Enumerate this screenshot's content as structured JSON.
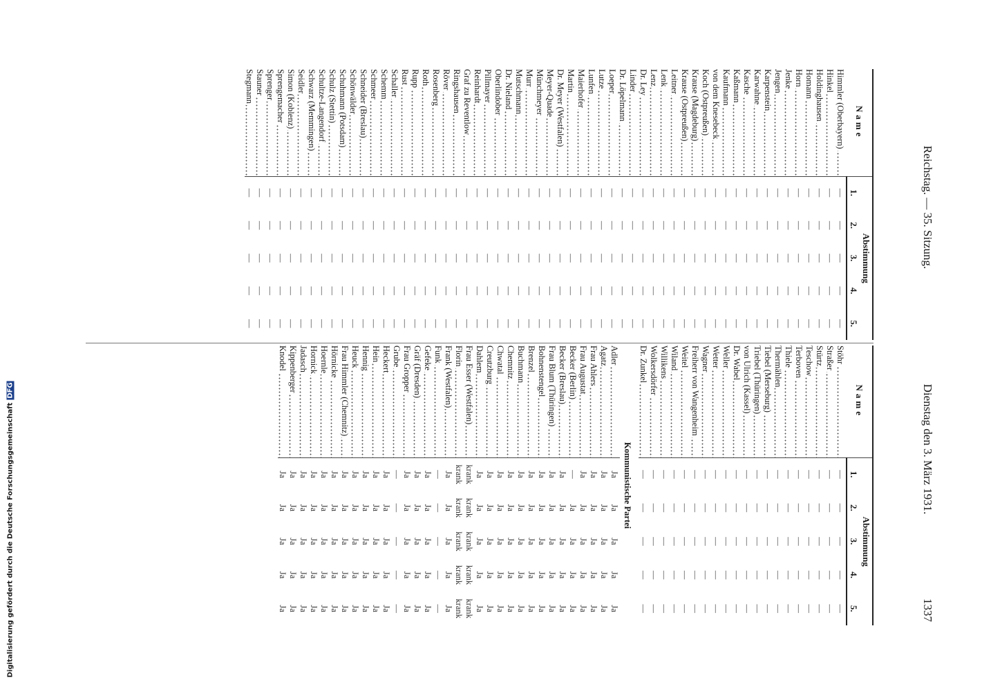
{
  "header": {
    "left": "Reichstag. — 35. Sitzung.",
    "right": "Dienstag den 3. März 1931.",
    "page": "1337"
  },
  "columns": {
    "name": "Name",
    "vote": "Abstimmung",
    "numbers": [
      "1.",
      "2.",
      "3.",
      "4.",
      "5."
    ]
  },
  "tables": [
    {
      "rows": [
        {
          "name": "Himmler (Oberbayern)",
          "votes": [
            "—",
            "—",
            "—",
            "—",
            "—"
          ]
        },
        {
          "name": "Hinkel",
          "votes": [
            "—",
            "—",
            "—",
            "—",
            "—"
          ]
        },
        {
          "name": "Holdinghausen",
          "votes": [
            "—",
            "—",
            "—",
            "—",
            "—"
          ]
        },
        {
          "name": "Homann",
          "votes": [
            "—",
            "—",
            "—",
            "—",
            "—"
          ]
        },
        {
          "name": "Horn",
          "votes": [
            "—",
            "—",
            "—",
            "—",
            "—"
          ]
        },
        {
          "name": "Jenke",
          "votes": [
            "—",
            "—",
            "—",
            "—",
            "—"
          ]
        },
        {
          "name": "Jengen",
          "votes": [
            "—",
            "—",
            "—",
            "—",
            "—"
          ]
        },
        {
          "name": "Karpenstein",
          "votes": [
            "—",
            "—",
            "—",
            "—",
            "—"
          ]
        },
        {
          "name": "Karwahne",
          "votes": [
            "—",
            "—",
            "—",
            "—",
            "—"
          ]
        },
        {
          "name": "Kasche",
          "votes": [
            "—",
            "—",
            "—",
            "—",
            "—"
          ]
        },
        {
          "name": "Kaßmann",
          "votes": [
            "—",
            "—",
            "—",
            "—",
            "—"
          ]
        },
        {
          "name": "Kaufmann",
          "votes": [
            "—",
            "—",
            "—",
            "—",
            "—"
          ]
        },
        {
          "name": "von dem Knesebeck",
          "votes": [
            "—",
            "—",
            "—",
            "—",
            "—"
          ]
        },
        {
          "name": "Koch (Ostpreußen)",
          "votes": [
            "—",
            "—",
            "—",
            "—",
            "—"
          ]
        },
        {
          "name": "Krause (Magdeburg)",
          "votes": [
            "—",
            "—",
            "—",
            "—",
            "—"
          ]
        },
        {
          "name": "Krause (Ostpreußen)",
          "votes": [
            "—",
            "—",
            "—",
            "—",
            "—"
          ]
        },
        {
          "name": "Leitner",
          "votes": [
            "—",
            "—",
            "—",
            "—",
            "—"
          ]
        },
        {
          "name": "Lenk",
          "votes": [
            "—",
            "—",
            "—",
            "—",
            "—"
          ]
        },
        {
          "name": "Lenz",
          "votes": [
            "—",
            "—",
            "—",
            "—",
            "—"
          ]
        },
        {
          "name": "Dr. Ley",
          "votes": [
            "—",
            "—",
            "—",
            "—",
            "—"
          ]
        },
        {
          "name": "Linder",
          "votes": [
            "—",
            "—",
            "—",
            "—",
            "—"
          ]
        },
        {
          "name": "Dr. Löpelmann",
          "votes": [
            "—",
            "—",
            "—",
            "—",
            "—"
          ]
        },
        {
          "name": "Loeper",
          "votes": [
            "—",
            "—",
            "—",
            "—",
            "—"
          ]
        },
        {
          "name": "Lutze",
          "votes": [
            "—",
            "—",
            "—",
            "—",
            "—"
          ]
        },
        {
          "name": "Lunfen",
          "votes": [
            "—",
            "—",
            "—",
            "—",
            "—"
          ]
        },
        {
          "name": "Maierhofer",
          "votes": [
            "—",
            "—",
            "—",
            "—",
            "—"
          ]
        },
        {
          "name": "Martin",
          "votes": [
            "—",
            "—",
            "—",
            "—",
            "—"
          ]
        },
        {
          "name": "Dr. Meyer (Westfalen)",
          "votes": [
            "—",
            "—",
            "—",
            "—",
            "—"
          ]
        },
        {
          "name": "Meyer-Quade",
          "votes": [
            "—",
            "—",
            "—",
            "—",
            "—"
          ]
        },
        {
          "name": "Münchmeyer",
          "votes": [
            "—",
            "—",
            "—",
            "—",
            "—"
          ]
        },
        {
          "name": "Murr",
          "votes": [
            "—",
            "—",
            "—",
            "—",
            "—"
          ]
        },
        {
          "name": "Mutschmann",
          "votes": [
            "—",
            "—",
            "—",
            "—",
            "—"
          ]
        },
        {
          "name": "Dr. Nieland",
          "votes": [
            "—",
            "—",
            "—",
            "—",
            "—"
          ]
        },
        {
          "name": "Oberlindober",
          "votes": [
            "—",
            "—",
            "—",
            "—",
            "—"
          ]
        },
        {
          "name": "Pillmayer",
          "votes": [
            "—",
            "—",
            "—",
            "—",
            "—"
          ]
        },
        {
          "name": "Reinhardt",
          "votes": [
            "—",
            "—",
            "—",
            "—",
            "—"
          ]
        },
        {
          "name": "Graf zu Reventlow",
          "votes": [
            "—",
            "—",
            "—",
            "—",
            "—"
          ]
        },
        {
          "name": "Ringshausen",
          "votes": [
            "—",
            "—",
            "—",
            "—",
            "—"
          ]
        },
        {
          "name": "Röver",
          "votes": [
            "—",
            "—",
            "—",
            "—",
            "—"
          ]
        },
        {
          "name": "Rosenberg",
          "votes": [
            "—",
            "—",
            "—",
            "—",
            "—"
          ]
        },
        {
          "name": "Roth",
          "votes": [
            "—",
            "—",
            "—",
            "—",
            "—"
          ]
        },
        {
          "name": "Rupp",
          "votes": [
            "—",
            "—",
            "—",
            "—",
            "—"
          ]
        },
        {
          "name": "Rust",
          "votes": [
            "—",
            "—",
            "—",
            "—",
            "—"
          ]
        },
        {
          "name": "Schaller",
          "votes": [
            "—",
            "—",
            "—",
            "—",
            "—"
          ]
        },
        {
          "name": "Schemm",
          "votes": [
            "—",
            "—",
            "—",
            "—",
            "—"
          ]
        },
        {
          "name": "Schmeer",
          "votes": [
            "—",
            "—",
            "—",
            "—",
            "—"
          ]
        },
        {
          "name": "Schneider (Breslau)",
          "votes": [
            "—",
            "—",
            "—",
            "—",
            "—"
          ]
        },
        {
          "name": "Schönwälder",
          "votes": [
            "—",
            "—",
            "—",
            "—",
            "—"
          ]
        },
        {
          "name": "Schuhmann (Potsdam)",
          "votes": [
            "—",
            "—",
            "—",
            "—",
            "—"
          ]
        },
        {
          "name": "Schulz (Stettin)",
          "votes": [
            "—",
            "—",
            "—",
            "—",
            "—"
          ]
        },
        {
          "name": "Schultze-Langendorf",
          "votes": [
            "—",
            "—",
            "—",
            "—",
            "—"
          ]
        },
        {
          "name": "Schwarz (Memmingen)",
          "votes": [
            "—",
            "—",
            "—",
            "—",
            "—"
          ]
        },
        {
          "name": "Seidler",
          "votes": [
            "—",
            "—",
            "—",
            "—",
            "—"
          ]
        },
        {
          "name": "Simon (Koblenz)",
          "votes": [
            "—",
            "—",
            "—",
            "—",
            "—"
          ]
        },
        {
          "name": "Sprengemacher",
          "votes": [
            "—",
            "—",
            "—",
            "—",
            "—"
          ]
        },
        {
          "name": "Sprenger",
          "votes": [
            "—",
            "—",
            "—",
            "—",
            "—"
          ]
        },
        {
          "name": "Stauner",
          "votes": [
            "—",
            "—",
            "—",
            "—",
            "—"
          ]
        },
        {
          "name": "Stegmann",
          "votes": [
            "—",
            "—",
            "—",
            "—",
            "—"
          ]
        }
      ]
    },
    {
      "rows": [
        {
          "name": "Stöhr",
          "votes": [
            "—",
            "—",
            "—",
            "—",
            "—"
          ]
        },
        {
          "name": "Straßer",
          "votes": [
            "—",
            "—",
            "—",
            "—",
            "—"
          ]
        },
        {
          "name": "Stürtz",
          "votes": [
            "—",
            "—",
            "—",
            "—",
            "—"
          ]
        },
        {
          "name": "Teschow",
          "votes": [
            "—",
            "—",
            "—",
            "—",
            "—"
          ]
        },
        {
          "name": "Terboven",
          "votes": [
            "—",
            "—",
            "—",
            "—",
            "—"
          ]
        },
        {
          "name": "Thiele",
          "votes": [
            "—",
            "—",
            "—",
            "—",
            "—"
          ]
        },
        {
          "name": "Thermählen",
          "votes": [
            "—",
            "—",
            "—",
            "—",
            "—"
          ]
        },
        {
          "name": "Tiebel (Merseburg)",
          "votes": [
            "—",
            "—",
            "—",
            "—",
            "—"
          ]
        },
        {
          "name": "Triebel (Thüringen)",
          "votes": [
            "—",
            "—",
            "—",
            "—",
            "—"
          ]
        },
        {
          "name": "von Ulrich (Kassel)",
          "votes": [
            "—",
            "—",
            "—",
            "—",
            "—"
          ]
        },
        {
          "name": "Dr. Wabel",
          "votes": [
            "—",
            "—",
            "—",
            "—",
            "—"
          ]
        },
        {
          "name": "Weller",
          "votes": [
            "—",
            "—",
            "—",
            "—",
            "—"
          ]
        },
        {
          "name": "Wetter",
          "votes": [
            "—",
            "—",
            "—",
            "—",
            "—"
          ]
        },
        {
          "name": "Wagner",
          "votes": [
            "—",
            "—",
            "—",
            "—",
            "—"
          ]
        },
        {
          "name": "Freiherr von Wangenheim",
          "votes": [
            "—",
            "—",
            "—",
            "—",
            "—"
          ]
        },
        {
          "name": "Weitel",
          "votes": [
            "—",
            "—",
            "—",
            "—",
            "—"
          ]
        },
        {
          "name": "Wiland",
          "votes": [
            "—",
            "—",
            "—",
            "—",
            "—"
          ]
        },
        {
          "name": "Willikens",
          "votes": [
            "—",
            "—",
            "—",
            "—",
            "—"
          ]
        },
        {
          "name": "Wolkersdörfer",
          "votes": [
            "—",
            "—",
            "—",
            "—",
            "—"
          ]
        },
        {
          "name": "Dr. Zunkel",
          "votes": [
            "—",
            "—",
            "—",
            "—",
            "—"
          ]
        },
        {
          "section": "Kommunistische Partei"
        },
        {
          "name": "Adler",
          "votes": [
            "Ja",
            "Ja",
            "Ja",
            "Ja",
            "Ja"
          ]
        },
        {
          "name": "Agatz",
          "votes": [
            "Ja",
            "Ja",
            "Ja",
            "Ja",
            "Ja"
          ]
        },
        {
          "name": "Frau Ahlers",
          "votes": [
            "Ja",
            "Ja",
            "Ja",
            "Ja",
            "Ja"
          ]
        },
        {
          "name": "Frau Augustat",
          "votes": [
            "Ja",
            "Ja",
            "Ja",
            "Ja",
            "Ja"
          ]
        },
        {
          "name": "Becker (Berlin)",
          "votes": [
            "—",
            "Ja",
            "Ja",
            "Ja",
            "Ja"
          ]
        },
        {
          "name": "Becker (Breslau)",
          "votes": [
            "Ja",
            "Ja",
            "Ja",
            "Ja",
            "Ja"
          ]
        },
        {
          "name": "Frau Blum (Thüringen)",
          "votes": [
            "Ja",
            "Ja",
            "Ja",
            "Ja",
            "Ja"
          ]
        },
        {
          "name": "Bohnenstengel",
          "votes": [
            "Ja",
            "Ja",
            "Ja",
            "Ja",
            "Ja"
          ]
        },
        {
          "name": "Brenzel",
          "votes": [
            "Ja",
            "Ja",
            "Ja",
            "Ja",
            "Ja"
          ]
        },
        {
          "name": "Buchmann",
          "votes": [
            "Ja",
            "Ja",
            "Ja",
            "Ja",
            "Ja"
          ]
        },
        {
          "name": "Chemnitz",
          "votes": [
            "Ja",
            "Ja",
            "Ja",
            "Ja",
            "Ja"
          ]
        },
        {
          "name": "Chwatal",
          "votes": [
            "Ja",
            "Ja",
            "Ja",
            "Ja",
            "Ja"
          ]
        },
        {
          "name": "Creutzburg",
          "votes": [
            "Ja",
            "Ja",
            "Ja",
            "Ja",
            "Ja"
          ]
        },
        {
          "name": "Dahlem",
          "votes": [
            "Ja",
            "Ja",
            "Ja",
            "Ja",
            "Ja"
          ]
        },
        {
          "name": "Frau Esser (Westfalen)",
          "votes": [
            "krank",
            "krank",
            "krank",
            "krank",
            "krank"
          ]
        },
        {
          "name": "Florin",
          "votes": [
            "krank",
            "krank",
            "krank",
            "krank",
            "krank"
          ]
        },
        {
          "name": "Frank (Westfalen)",
          "votes": [
            "Ja",
            "Ja",
            "Ja",
            "Ja",
            "Ja"
          ]
        },
        {
          "name": "Funk",
          "votes": [
            "—",
            "—",
            "—",
            "—",
            "—"
          ]
        },
        {
          "name": "Gefeke",
          "votes": [
            "Ja",
            "Ja",
            "Ja",
            "Ja",
            "Ja"
          ]
        },
        {
          "name": "Gräf (Dresden)",
          "votes": [
            "Ja",
            "Ja",
            "Ja",
            "Ja",
            "Ja"
          ]
        },
        {
          "name": "Frau Gropper",
          "votes": [
            "Ja",
            "Ja",
            "Ja",
            "Ja",
            "Ja"
          ]
        },
        {
          "name": "Grube",
          "votes": [
            "—",
            "—",
            "—",
            "—",
            "—"
          ]
        },
        {
          "name": "Heckert",
          "votes": [
            "Ja",
            "Ja",
            "Ja",
            "Ja",
            "Ja"
          ]
        },
        {
          "name": "Hein",
          "votes": [
            "Ja",
            "Ja",
            "Ja",
            "Ja",
            "Ja"
          ]
        },
        {
          "name": "Hennig",
          "votes": [
            "Ja",
            "Ja",
            "Ja",
            "Ja",
            "Ja"
          ]
        },
        {
          "name": "Heuck",
          "votes": [
            "Ja",
            "Ja",
            "Ja",
            "Ja",
            "Ja"
          ]
        },
        {
          "name": "Frau Himmler (Chemnitz)",
          "votes": [
            "Ja",
            "Ja",
            "Ja",
            "Ja",
            "Ja"
          ]
        },
        {
          "name": "Hörnicke",
          "votes": [
            "Ja",
            "Ja",
            "Ja",
            "Ja",
            "Ja"
          ]
        },
        {
          "name": "Hoernle",
          "votes": [
            "Ja",
            "Ja",
            "Ja",
            "Ja",
            "Ja"
          ]
        },
        {
          "name": "Hornick",
          "votes": [
            "Ja",
            "Ja",
            "Ja",
            "Ja",
            "Ja"
          ]
        },
        {
          "name": "Jadasch",
          "votes": [
            "Ja",
            "Ja",
            "Ja",
            "Ja",
            "Ja"
          ]
        },
        {
          "name": "Kippenberger",
          "votes": [
            "Ja",
            "Ja",
            "Ja",
            "Ja",
            "Ja"
          ]
        },
        {
          "name": "Knodel",
          "votes": [
            "Ja",
            "Ja",
            "Ja",
            "Ja",
            "Ja"
          ]
        }
      ]
    }
  ],
  "footer": {
    "note": "Digitalisierung gefördert durch die Deutsche Forschungsgemeinschaft",
    "logo": "DFG"
  }
}
